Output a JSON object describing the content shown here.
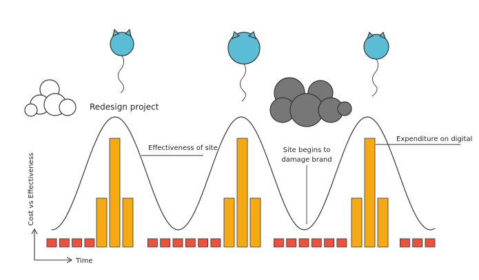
{
  "labels": {
    "redesign": "Redesign project",
    "effectiveness": "Effectiveness of site",
    "damage_line1": "Site begins to",
    "damage_line2": "damage brand",
    "expenditure": "Expenditure on digital"
  },
  "axes": {
    "y_label": "Cost vs Effectiveness",
    "x_label": "Time"
  }
}
